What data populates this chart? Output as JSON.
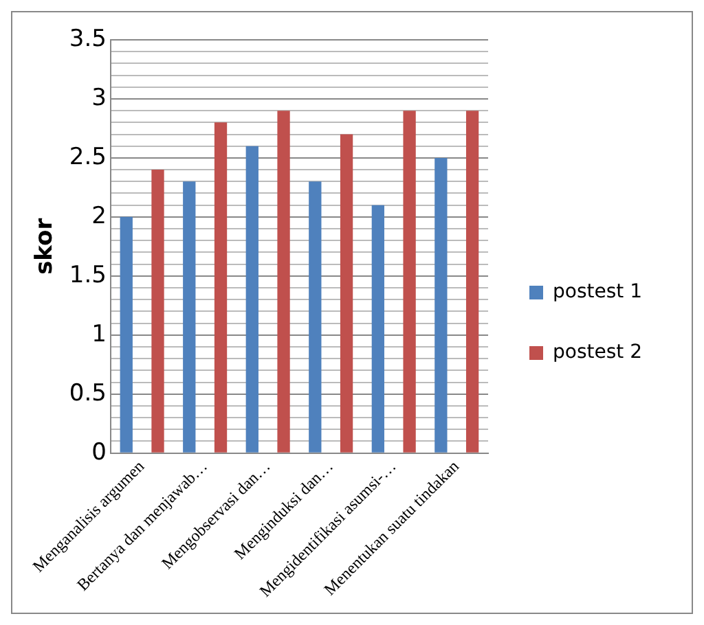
{
  "chart_data": {
    "type": "bar",
    "ylabel": "skor",
    "categories": [
      "Menganalisis argumen",
      "Bertanya dan menjawab…",
      "Mengobservasi dan…",
      "Menginduksi dan…",
      "Mengidentifikasi asumsi-…",
      "Menentukan suatu tindakan"
    ],
    "series": [
      {
        "name": "postest 1",
        "color": "#4f81bd",
        "values": [
          2.0,
          2.3,
          2.6,
          2.3,
          2.1,
          2.5
        ]
      },
      {
        "name": "postest 2",
        "color": "#c0504d",
        "values": [
          2.4,
          2.8,
          2.9,
          2.7,
          2.9,
          2.9
        ]
      }
    ],
    "ylim": [
      0,
      3.5
    ],
    "yticks": [
      0,
      {
        "value": 0.1,
        "label": null
      },
      {
        "value": 0.2,
        "label": null
      },
      {
        "value": 0.3,
        "label": null
      },
      {
        "value": 0.4,
        "label": null
      },
      0.5,
      {
        "value": 0.6,
        "label": null
      },
      {
        "value": 0.7,
        "label": null
      },
      {
        "value": 0.8,
        "label": null
      },
      {
        "value": 0.9,
        "label": null
      },
      1,
      {
        "value": 1.1,
        "label": null
      },
      {
        "value": 1.2,
        "label": null
      },
      {
        "value": 1.3,
        "label": null
      },
      {
        "value": 1.4,
        "label": null
      },
      1.5,
      {
        "value": 1.6,
        "label": null
      },
      {
        "value": 1.7,
        "label": null
      },
      {
        "value": 1.8,
        "label": null
      },
      {
        "value": 1.9,
        "label": null
      },
      2,
      {
        "value": 2.1,
        "label": null
      },
      {
        "value": 2.2,
        "label": null
      },
      {
        "value": 2.3,
        "label": null
      },
      {
        "value": 2.4,
        "label": null
      },
      2.5,
      {
        "value": 2.6,
        "label": null
      },
      {
        "value": 2.7,
        "label": null
      },
      {
        "value": 2.8,
        "label": null
      },
      {
        "value": 2.9,
        "label": null
      },
      3,
      {
        "value": 3.1,
        "label": null
      },
      {
        "value": 3.2,
        "label": null
      },
      {
        "value": 3.3,
        "label": null
      },
      {
        "value": 3.4,
        "label": null
      },
      3.5
    ],
    "grid": "y",
    "legend": "right"
  }
}
